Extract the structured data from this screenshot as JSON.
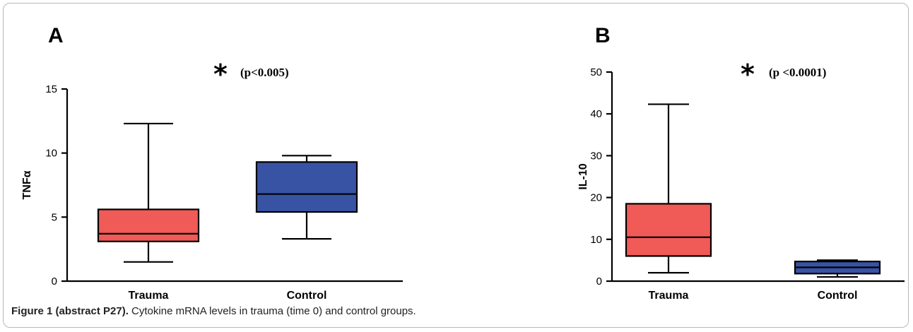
{
  "caption": {
    "bold": "Figure 1 (abstract P27).",
    "text": " Cytokine mRNA levels in trauma (time 0) and control groups."
  },
  "chart_data": [
    {
      "type": "box",
      "panel": "A",
      "ylabel": "TNFα",
      "ylim": [
        0,
        15
      ],
      "yticks": [
        0,
        5,
        10,
        15
      ],
      "significance": {
        "star": "*",
        "text": "(p<0.005)"
      },
      "categories": [
        "Trauma",
        "Control"
      ],
      "boxes": [
        {
          "category": "Trauma",
          "min": 1.5,
          "q1": 3.1,
          "median": 3.7,
          "q3": 5.6,
          "max": 12.3,
          "color": "#f05a57"
        },
        {
          "category": "Control",
          "min": 3.3,
          "q1": 5.4,
          "median": 6.8,
          "q3": 9.3,
          "max": 9.8,
          "color": "#3853a4"
        }
      ]
    },
    {
      "type": "box",
      "panel": "B",
      "ylabel": "IL-10",
      "ylim": [
        0,
        50
      ],
      "yticks": [
        0,
        10,
        20,
        30,
        40,
        50
      ],
      "significance": {
        "star": "*",
        "text": "(p <0.0001)"
      },
      "categories": [
        "Trauma",
        "Control"
      ],
      "boxes": [
        {
          "category": "Trauma",
          "min": 2,
          "q1": 6,
          "median": 10.5,
          "q3": 18.5,
          "max": 42.3,
          "color": "#f05a57"
        },
        {
          "category": "Control",
          "min": 1,
          "q1": 1.8,
          "median": 3.3,
          "q3": 4.7,
          "max": 5,
          "color": "#3853a4"
        }
      ]
    }
  ]
}
